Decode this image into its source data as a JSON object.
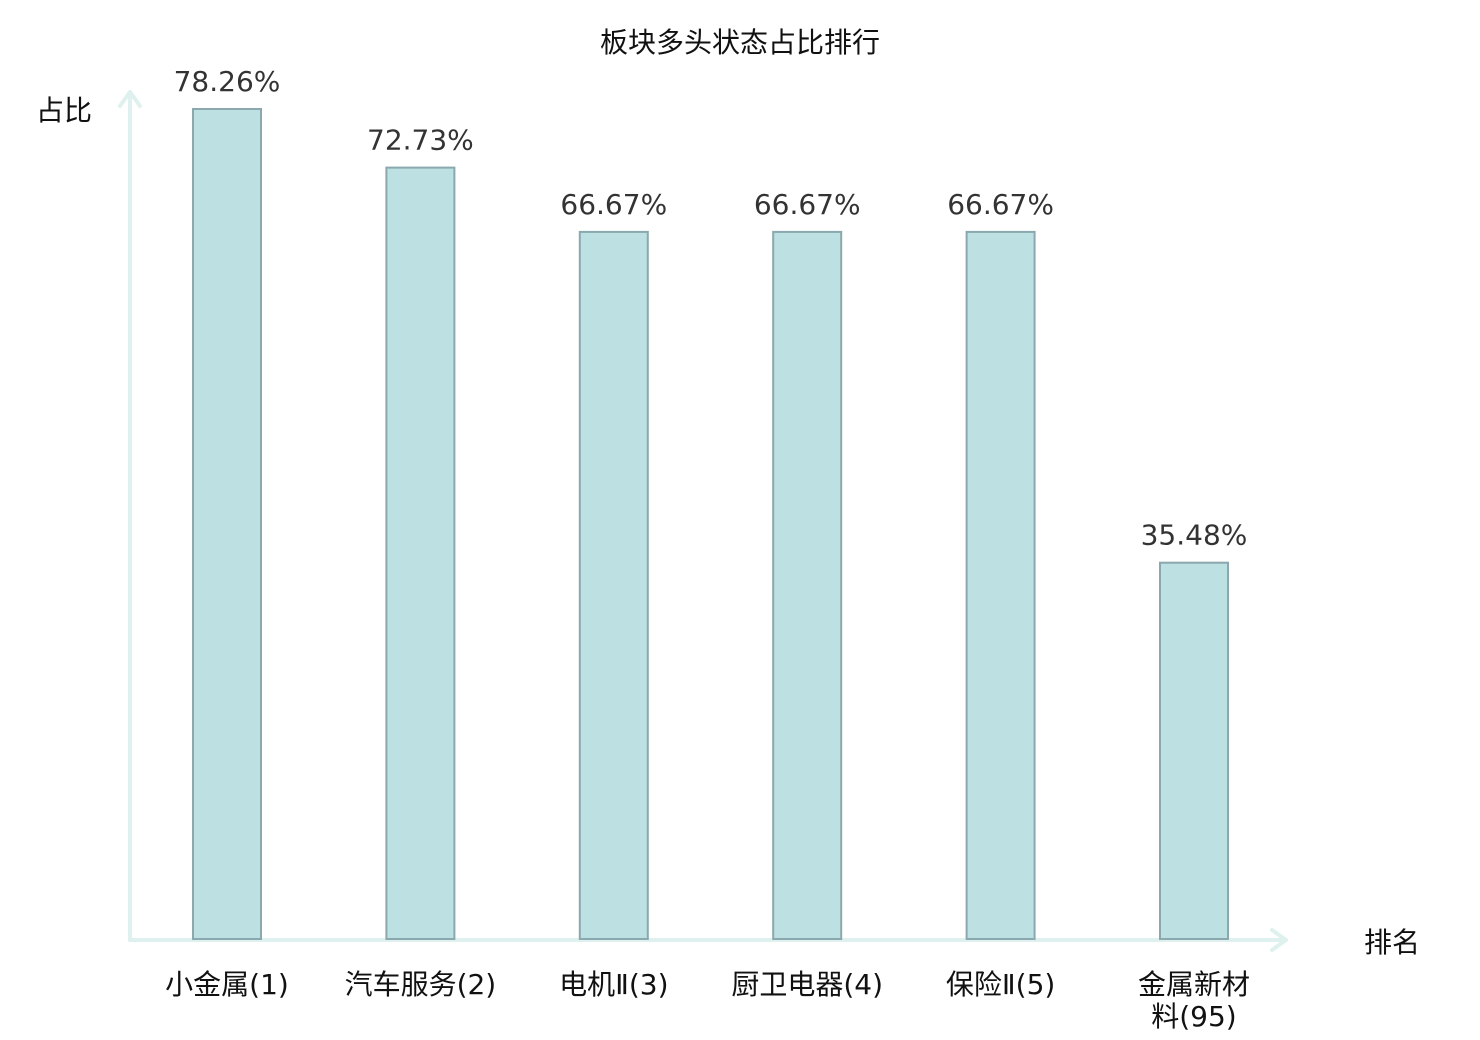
{
  "chart_data": {
    "type": "bar",
    "title": "板块多头状态占比排行",
    "ylabel": "占比",
    "xlabel": "排名",
    "categories": [
      "小金属(1)",
      "汽车服务(2)",
      "电机Ⅱ(3)",
      "厨卫电器(4)",
      "保险Ⅱ(5)",
      "金属新材料(95)"
    ],
    "category_lines": [
      [
        "小金属(1)"
      ],
      [
        "汽车服务(2)"
      ],
      [
        "电机Ⅱ(3)"
      ],
      [
        "厨卫电器(4)"
      ],
      [
        "保险Ⅱ(5)"
      ],
      [
        "金属新材",
        "料(95)"
      ]
    ],
    "values": [
      78.26,
      72.73,
      66.67,
      66.67,
      66.67,
      35.48
    ],
    "value_labels": [
      "78.26%",
      "72.73%",
      "66.67%",
      "66.67%",
      "66.67%",
      "35.48%"
    ],
    "highlight_index": 5,
    "ylim": [
      0,
      78.26
    ],
    "grid": false,
    "colors": {
      "bar_fill": "#bde0e3",
      "bar_stroke": "#8aa8ad",
      "axis": "#dff1ef",
      "highlight_label": "#e8141c",
      "value_label": "#333333",
      "text": "#111111"
    }
  }
}
